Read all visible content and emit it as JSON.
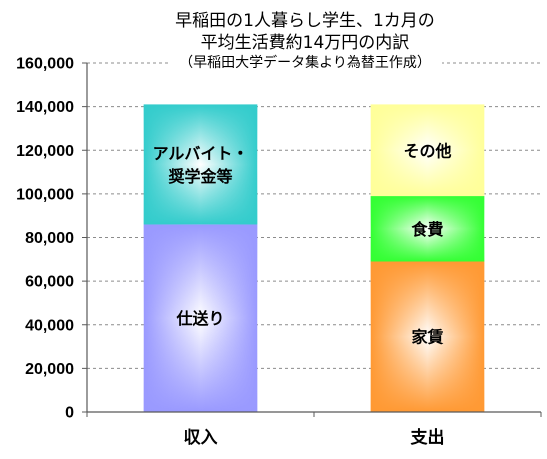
{
  "chart_data": {
    "type": "bar",
    "stacked": true,
    "title_lines": [
      "早稲田の1人暮らし学生、1カ月の",
      "平均生活費約14万円の内訳"
    ],
    "subtitle": "（早稲田大学データ集より為替王作成）",
    "categories": [
      "収入",
      "支出"
    ],
    "ylim": [
      0,
      160000
    ],
    "yticks": [
      0,
      20000,
      40000,
      60000,
      80000,
      100000,
      120000,
      140000,
      160000
    ],
    "ytick_labels": [
      "0",
      "20,000",
      "40,000",
      "60,000",
      "80,000",
      "100,000",
      "120,000",
      "140,000",
      "160,000"
    ],
    "grid": true,
    "legend": false,
    "stacks": [
      {
        "segments": [
          {
            "label_lines": [
              "仕送り"
            ],
            "value": 86000,
            "color": "#9999FF"
          },
          {
            "label_lines": [
              "アルバイト・",
              "奨学金等"
            ],
            "value": 55000,
            "color": "#33CCCC"
          }
        ]
      },
      {
        "segments": [
          {
            "label_lines": [
              "家賃"
            ],
            "value": 69000,
            "color": "#FF9933"
          },
          {
            "label_lines": [
              "食費"
            ],
            "value": 30000,
            "color": "#33FF33"
          },
          {
            "label_lines": [
              "その他"
            ],
            "value": 42000,
            "color": "#FFFF99"
          }
        ]
      }
    ]
  }
}
